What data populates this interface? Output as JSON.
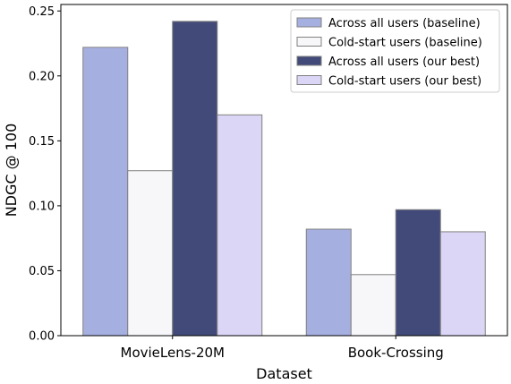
{
  "chart_data": {
    "type": "bar",
    "xlabel": "Dataset",
    "ylabel": "NDGC @ 100",
    "ylim": [
      0,
      0.255
    ],
    "yticks": [
      "0.00",
      "0.05",
      "0.10",
      "0.15",
      "0.20",
      "0.25"
    ],
    "categories": [
      "MovieLens-20M",
      "Book-Crossing"
    ],
    "series": [
      {
        "name": "Across all users (baseline)",
        "values": [
          0.222,
          0.082
        ],
        "color": "#a6b0e0"
      },
      {
        "name": "Cold-start users (baseline)",
        "values": [
          0.127,
          0.047
        ],
        "color": "#f7f6f8"
      },
      {
        "name": "Across all users (our best)",
        "values": [
          0.242,
          0.097
        ],
        "color": "#414a78"
      },
      {
        "name": "Cold-start users (our best)",
        "values": [
          0.17,
          0.08
        ],
        "color": "#dbd6f6"
      }
    ],
    "legend_position": "top-right",
    "grid": false,
    "bar_edge_color": "#808080"
  }
}
